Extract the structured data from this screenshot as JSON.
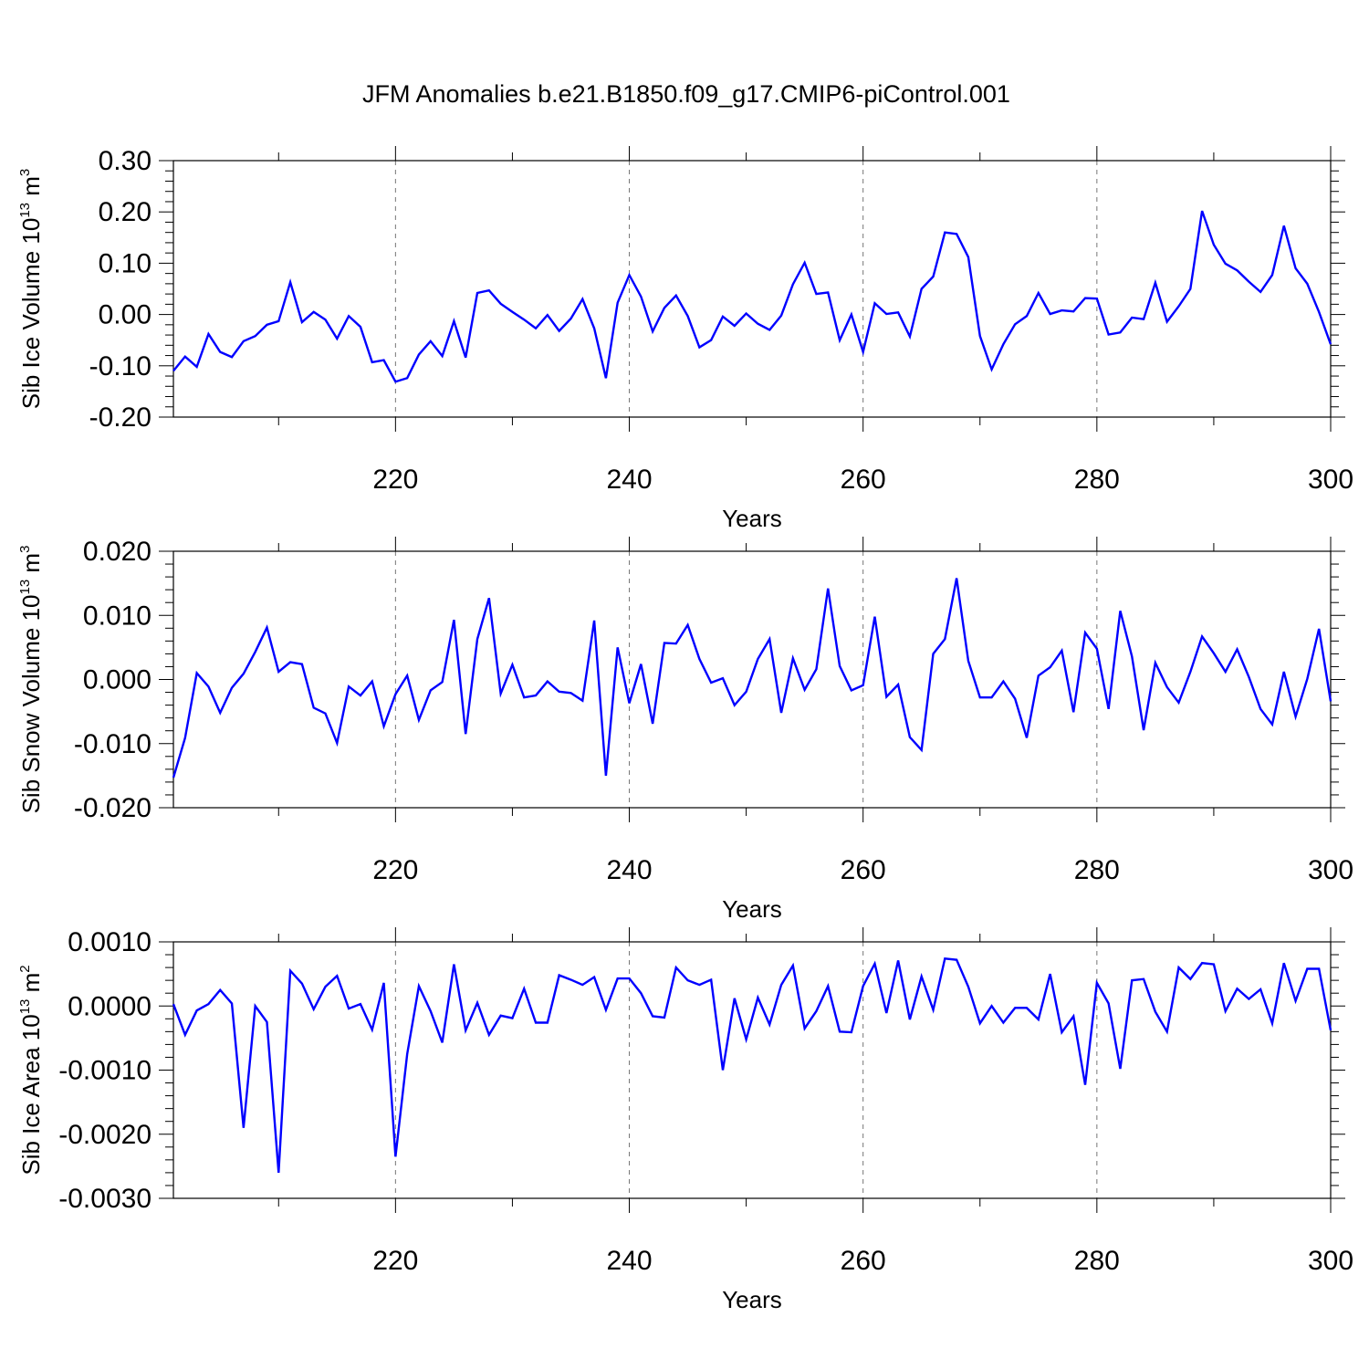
{
  "chart_data": {
    "title": "JFM Anomalies b.e21.B1850.f09_g17.CMIP6-piControl.001",
    "type": "line",
    "series_color": "#0000ff",
    "panels": [
      {
        "name": "ice-volume",
        "type": "line",
        "ylabel": "Sib Ice Volume 10",
        "ylabel_sup": "13",
        "ylabel_unit": "m",
        "ylabel_unit_sup": "3",
        "xlabel": "Years",
        "xlim": [
          201,
          300
        ],
        "ylim": [
          -0.2,
          0.3
        ],
        "yticks": [
          "-0.20",
          "-0.10",
          "0.00",
          "0.10",
          "0.20",
          "0.30"
        ],
        "xticks": [
          "220",
          "240",
          "260",
          "280",
          "300"
        ],
        "x_start": 201,
        "values": [
          -0.11,
          -0.082,
          -0.102,
          -0.038,
          -0.073,
          -0.083,
          -0.052,
          -0.042,
          -0.02,
          -0.013,
          0.063,
          -0.015,
          0.005,
          -0.01,
          -0.047,
          -0.003,
          -0.024,
          -0.093,
          -0.089,
          -0.131,
          -0.124,
          -0.078,
          -0.052,
          -0.081,
          -0.013,
          -0.084,
          0.042,
          0.047,
          0.021,
          0.005,
          -0.01,
          -0.027,
          -0.001,
          -0.032,
          -0.008,
          0.03,
          -0.027,
          -0.124,
          0.023,
          0.077,
          0.035,
          -0.033,
          0.013,
          0.037,
          -0.003,
          -0.064,
          -0.05,
          -0.004,
          -0.022,
          0.002,
          -0.018,
          -0.03,
          -0.002,
          0.059,
          0.101,
          0.04,
          0.043,
          -0.05,
          0.0,
          -0.073,
          0.022,
          0.001,
          0.004,
          -0.043,
          0.05,
          0.074,
          0.16,
          0.157,
          0.112,
          -0.042,
          -0.107,
          -0.058,
          -0.019,
          -0.003,
          0.042,
          0.001,
          0.008,
          0.006,
          0.032,
          0.031,
          -0.039,
          -0.035,
          -0.006,
          -0.009,
          0.062,
          -0.014,
          0.016,
          0.05,
          0.202,
          0.136,
          0.099,
          0.086,
          0.064,
          0.044,
          0.077,
          0.173,
          0.09,
          0.06,
          0.005,
          -0.058
        ]
      },
      {
        "name": "snow-volume",
        "type": "line",
        "ylabel": "Sib Snow Volume 10",
        "ylabel_sup": "13",
        "ylabel_unit": "m",
        "ylabel_unit_sup": "3",
        "xlabel": "Years",
        "xlim": [
          201,
          300
        ],
        "ylim": [
          -0.02,
          0.02
        ],
        "yticks": [
          "-0.020",
          "-0.010",
          "0.000",
          "0.010",
          "0.020"
        ],
        "xticks": [
          "220",
          "240",
          "260",
          "280",
          "300"
        ],
        "x_start": 201,
        "values": [
          -0.0153,
          -0.0091,
          0.001,
          -0.0011,
          -0.0052,
          -0.0013,
          0.0009,
          0.0043,
          0.0081,
          0.0012,
          0.0027,
          0.0024,
          -0.0044,
          -0.0053,
          -0.0099,
          -0.0011,
          -0.0025,
          -0.0003,
          -0.0073,
          -0.0023,
          0.0006,
          -0.0063,
          -0.0017,
          -0.0004,
          0.0093,
          -0.0085,
          0.0063,
          0.0127,
          -0.0022,
          0.0023,
          -0.0028,
          -0.0025,
          -0.0003,
          -0.0019,
          -0.0021,
          -0.0033,
          0.0092,
          -0.015,
          0.005,
          -0.0037,
          0.0024,
          -0.0069,
          0.0057,
          0.0056,
          0.0085,
          0.0032,
          -0.0005,
          0.0002,
          -0.004,
          -0.0019,
          0.0032,
          0.0063,
          -0.0052,
          0.0033,
          -0.0016,
          0.0016,
          0.0142,
          0.0021,
          -0.0017,
          -0.0009,
          0.0098,
          -0.0027,
          -0.0008,
          -0.009,
          -0.011,
          0.004,
          0.0063,
          0.0158,
          0.0029,
          -0.0028,
          -0.0028,
          -0.0003,
          -0.003,
          -0.0091,
          0.0006,
          0.0019,
          0.0045,
          -0.0051,
          0.0073,
          0.0048,
          -0.0046,
          0.0107,
          0.0036,
          -0.0079,
          0.0026,
          -0.0012,
          -0.0036,
          0.0012,
          0.0067,
          0.0041,
          0.0012,
          0.0047,
          0.0004,
          -0.0046,
          -0.007,
          0.0012,
          -0.0058,
          0.0001,
          0.0079,
          -0.0034
        ]
      },
      {
        "name": "ice-area",
        "type": "line",
        "ylabel": "Sib Ice Area 10",
        "ylabel_sup": "13",
        "ylabel_unit": "m",
        "ylabel_unit_sup": "2",
        "xlabel": "Years",
        "xlim": [
          201,
          300
        ],
        "ylim": [
          -0.003,
          0.001
        ],
        "yticks": [
          "-0.0030",
          "-0.0020",
          "-0.0010",
          "0.0000",
          "0.0010"
        ],
        "xticks": [
          "220",
          "240",
          "260",
          "280",
          "300"
        ],
        "x_start": 201,
        "values": [
          3e-05,
          -0.00045,
          -7e-05,
          3e-05,
          0.00025,
          4e-05,
          -0.0019,
          0.0,
          -0.00025,
          -0.0026,
          0.00055,
          0.00035,
          -5e-05,
          0.0003,
          0.00047,
          -4e-05,
          3e-05,
          -0.00037,
          0.00036,
          -0.00235,
          -0.00075,
          0.00031,
          -8e-05,
          -0.00057,
          0.00065,
          -0.00038,
          5e-05,
          -0.00045,
          -0.00015,
          -0.00019,
          0.00027,
          -0.00026,
          -0.00026,
          0.00048,
          0.00041,
          0.00033,
          0.00045,
          -6e-05,
          0.00043,
          0.00043,
          0.0002,
          -0.00016,
          -0.00018,
          0.0006,
          0.0004,
          0.00033,
          0.00041,
          -0.001,
          0.00012,
          -0.00052,
          0.00013,
          -0.00029,
          0.00033,
          0.00063,
          -0.00035,
          -8e-05,
          0.00031,
          -0.0004,
          -0.00041,
          0.00031,
          0.00066,
          -0.00011,
          0.00071,
          -0.00021,
          0.00046,
          -6e-05,
          0.00074,
          0.00072,
          0.0003,
          -0.00027,
          0.0,
          -0.00026,
          -3e-05,
          -3e-05,
          -0.00021,
          0.0005,
          -0.00041,
          -0.00016,
          -0.00123,
          0.00036,
          4e-05,
          -0.00098,
          0.0004,
          0.00042,
          -9e-05,
          -0.0004,
          0.0006,
          0.00042,
          0.00067,
          0.00065,
          -8e-05,
          0.00027,
          0.00011,
          0.00026,
          -0.00027,
          0.00067,
          8e-05,
          0.00058,
          0.00058,
          -0.00038
        ]
      }
    ]
  }
}
